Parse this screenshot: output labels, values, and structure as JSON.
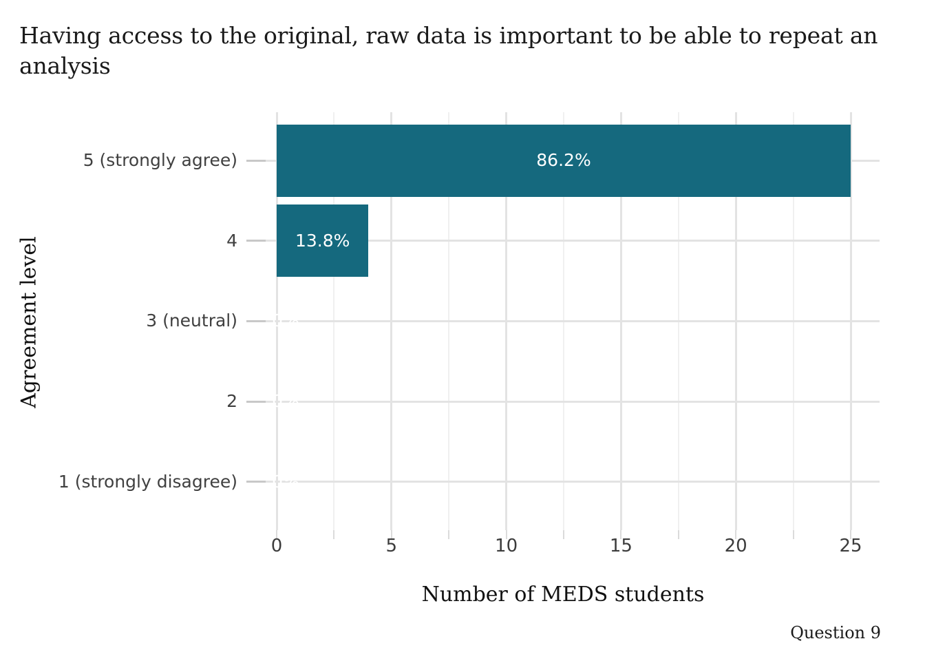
{
  "colors": {
    "bar": "#15697E",
    "bar_label": "#FFFFFF",
    "grid_major": "#E3E3E3",
    "grid_minor": "#F0F0F0",
    "axis_tick": "#DBDBDB",
    "y_tick": "#C8C8C8",
    "axis_text": "#404040",
    "title_text": "#1A1A1A"
  },
  "chart_data": {
    "type": "bar",
    "orientation": "horizontal",
    "title": "Having access to the original, raw data is important to be able to repeat an analysis",
    "categories": [
      "5 (strongly agree)",
      "4",
      "3 (neutral)",
      "2",
      "1 (strongly disagree)"
    ],
    "values": [
      25,
      4,
      0,
      0,
      0
    ],
    "value_labels": [
      "86.2%",
      "13.8%",
      "0%",
      "0%",
      "0%"
    ],
    "xlabel": "Number of MEDS students",
    "ylabel": "Agreement level",
    "caption": "Question 9",
    "xlim": [
      0,
      25
    ],
    "xticks": [
      0,
      5,
      10,
      15,
      20,
      25
    ],
    "x_minor_ticks": [
      2.5,
      7.5,
      12.5,
      17.5,
      22.5
    ],
    "grid": "vertical major+minor, horizontal major at category rows",
    "legend": "none"
  }
}
